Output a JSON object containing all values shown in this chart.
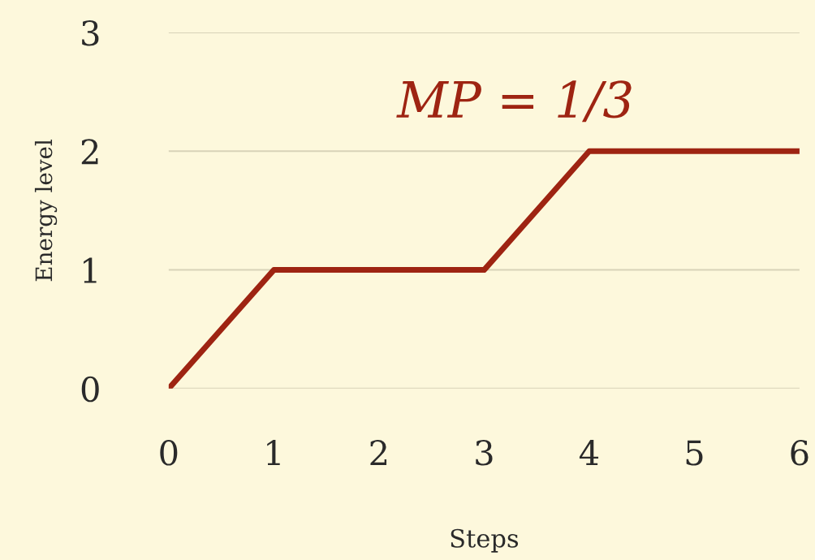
{
  "chart_data": {
    "type": "line",
    "xlabel": "Steps",
    "ylabel": "Energy level",
    "x": [
      0,
      1,
      2,
      3,
      4,
      5,
      6
    ],
    "series": [
      {
        "color": "#9e2412",
        "values": [
          0,
          1,
          1,
          1,
          2,
          2,
          2
        ]
      }
    ],
    "xlim": [
      0,
      6
    ],
    "ylim": [
      0,
      3
    ],
    "xticks": [
      0,
      1,
      2,
      3,
      4,
      5,
      6
    ],
    "yticks": [
      0,
      1,
      2,
      3
    ],
    "grid": "y",
    "marker": "none",
    "line_style": "solid",
    "annotations": [
      "MP = 1/3"
    ]
  }
}
